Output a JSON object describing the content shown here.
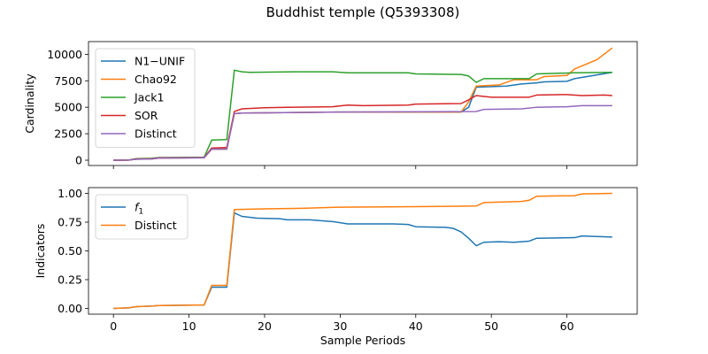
{
  "figure": {
    "title": "Buddhist temple (Q5393308)"
  },
  "chart_data": [
    {
      "type": "line",
      "ylabel": "Cardinality",
      "xlabel": "",
      "xlim": [
        -3.3,
        69.3
      ],
      "ylim": [
        -500,
        11200
      ],
      "xticks": [
        0,
        20,
        40,
        60
      ],
      "yticks": [
        0,
        2500,
        5000,
        7500,
        10000
      ],
      "grid": false,
      "legend": "top-left",
      "series": [
        {
          "name": "N1−UNIF",
          "color": "#1f77b4",
          "points": [
            [
              0,
              0
            ],
            [
              2,
              10
            ],
            [
              3,
              100
            ],
            [
              5,
              120
            ],
            [
              6,
              200
            ],
            [
              12,
              230
            ],
            [
              13,
              1050
            ],
            [
              15,
              1050
            ],
            [
              16,
              4400
            ],
            [
              17,
              4450
            ],
            [
              30,
              4550
            ],
            [
              46,
              4550
            ],
            [
              47,
              5000
            ],
            [
              48,
              6900
            ],
            [
              52,
              7000
            ],
            [
              54,
              7200
            ],
            [
              56,
              7300
            ],
            [
              57,
              7400
            ],
            [
              60,
              7450
            ],
            [
              61,
              7700
            ],
            [
              66,
              8300
            ]
          ]
        },
        {
          "name": "Chao92",
          "color": "#ff7f0e",
          "points": [
            [
              0,
              0
            ],
            [
              2,
              10
            ],
            [
              3,
              100
            ],
            [
              5,
              120
            ],
            [
              6,
              200
            ],
            [
              12,
              230
            ],
            [
              13,
              1050
            ],
            [
              15,
              1050
            ],
            [
              16,
              4400
            ],
            [
              17,
              4450
            ],
            [
              30,
              4550
            ],
            [
              46,
              4550
            ],
            [
              47,
              5500
            ],
            [
              48,
              7000
            ],
            [
              51,
              7100
            ],
            [
              53,
              7600
            ],
            [
              56,
              7600
            ],
            [
              57,
              7900
            ],
            [
              60,
              8000
            ],
            [
              61,
              8600
            ],
            [
              64,
              9500
            ],
            [
              66,
              10600
            ]
          ]
        },
        {
          "name": "Jack1",
          "color": "#2ca02c",
          "points": [
            [
              0,
              0
            ],
            [
              2,
              10
            ],
            [
              3,
              150
            ],
            [
              5,
              180
            ],
            [
              6,
              250
            ],
            [
              12,
              280
            ],
            [
              13,
              1900
            ],
            [
              15,
              1950
            ],
            [
              16,
              8500
            ],
            [
              17,
              8350
            ],
            [
              18,
              8300
            ],
            [
              24,
              8350
            ],
            [
              29,
              8350
            ],
            [
              31,
              8250
            ],
            [
              39,
              8250
            ],
            [
              40,
              8150
            ],
            [
              46,
              8100
            ],
            [
              47,
              7950
            ],
            [
              48,
              7350
            ],
            [
              49,
              7700
            ],
            [
              55,
              7700
            ],
            [
              56,
              8150
            ],
            [
              61,
              8250
            ],
            [
              66,
              8300
            ]
          ]
        },
        {
          "name": "SOR",
          "color": "#d62728",
          "points": [
            [
              0,
              0
            ],
            [
              2,
              10
            ],
            [
              3,
              120
            ],
            [
              5,
              140
            ],
            [
              6,
              220
            ],
            [
              12,
              250
            ],
            [
              13,
              1150
            ],
            [
              15,
              1200
            ],
            [
              16,
              4600
            ],
            [
              17,
              4850
            ],
            [
              20,
              4950
            ],
            [
              23,
              5000
            ],
            [
              29,
              5050
            ],
            [
              31,
              5200
            ],
            [
              33,
              5150
            ],
            [
              39,
              5200
            ],
            [
              40,
              5300
            ],
            [
              46,
              5350
            ],
            [
              47,
              5700
            ],
            [
              48,
              6100
            ],
            [
              50,
              5950
            ],
            [
              55,
              5950
            ],
            [
              56,
              6150
            ],
            [
              60,
              6200
            ],
            [
              62,
              6100
            ],
            [
              65,
              6150
            ],
            [
              66,
              6100
            ]
          ]
        },
        {
          "name": "Distinct",
          "color": "#9467bd",
          "points": [
            [
              0,
              0
            ],
            [
              2,
              10
            ],
            [
              3,
              100
            ],
            [
              5,
              120
            ],
            [
              6,
              200
            ],
            [
              12,
              230
            ],
            [
              13,
              1050
            ],
            [
              15,
              1050
            ],
            [
              16,
              4400
            ],
            [
              17,
              4450
            ],
            [
              30,
              4550
            ],
            [
              48,
              4600
            ],
            [
              49,
              4800
            ],
            [
              54,
              4850
            ],
            [
              56,
              5000
            ],
            [
              60,
              5050
            ],
            [
              62,
              5150
            ],
            [
              66,
              5150
            ]
          ]
        }
      ]
    },
    {
      "type": "line",
      "ylabel": "Indicators",
      "xlabel": "Sample Periods",
      "xlim": [
        -3.3,
        69.3
      ],
      "ylim": [
        -0.05,
        1.05
      ],
      "xticks": [
        0,
        10,
        20,
        30,
        40,
        50,
        60
      ],
      "yticks": [
        0.0,
        0.25,
        0.5,
        0.75,
        1.0
      ],
      "grid": false,
      "legend": "top-left",
      "series": [
        {
          "name": "f1",
          "color": "#1f77b4",
          "points": [
            [
              0,
              0
            ],
            [
              2,
              0.005
            ],
            [
              3,
              0.015
            ],
            [
              5,
              0.02
            ],
            [
              6,
              0.025
            ],
            [
              12,
              0.03
            ],
            [
              13,
              0.185
            ],
            [
              15,
              0.185
            ],
            [
              16,
              0.83
            ],
            [
              17,
              0.8
            ],
            [
              19,
              0.785
            ],
            [
              22,
              0.78
            ],
            [
              23,
              0.77
            ],
            [
              26,
              0.77
            ],
            [
              28,
              0.76
            ],
            [
              29,
              0.755
            ],
            [
              31,
              0.735
            ],
            [
              37,
              0.735
            ],
            [
              39,
              0.73
            ],
            [
              40,
              0.71
            ],
            [
              44,
              0.705
            ],
            [
              45,
              0.695
            ],
            [
              46,
              0.665
            ],
            [
              47,
              0.61
            ],
            [
              48,
              0.545
            ],
            [
              49,
              0.575
            ],
            [
              51,
              0.58
            ],
            [
              53,
              0.575
            ],
            [
              55,
              0.585
            ],
            [
              56,
              0.61
            ],
            [
              61,
              0.615
            ],
            [
              62,
              0.63
            ],
            [
              66,
              0.62
            ]
          ]
        },
        {
          "name": "Distinct",
          "color": "#ff7f0e",
          "points": [
            [
              0,
              0
            ],
            [
              2,
              0.005
            ],
            [
              3,
              0.015
            ],
            [
              5,
              0.02
            ],
            [
              6,
              0.025
            ],
            [
              12,
              0.03
            ],
            [
              13,
              0.2
            ],
            [
              15,
              0.2
            ],
            [
              16,
              0.86
            ],
            [
              20,
              0.865
            ],
            [
              25,
              0.87
            ],
            [
              30,
              0.88
            ],
            [
              40,
              0.885
            ],
            [
              48,
              0.89
            ],
            [
              49,
              0.92
            ],
            [
              54,
              0.93
            ],
            [
              55,
              0.94
            ],
            [
              56,
              0.975
            ],
            [
              61,
              0.98
            ],
            [
              62,
              0.995
            ],
            [
              66,
              1.0
            ]
          ]
        }
      ]
    }
  ]
}
